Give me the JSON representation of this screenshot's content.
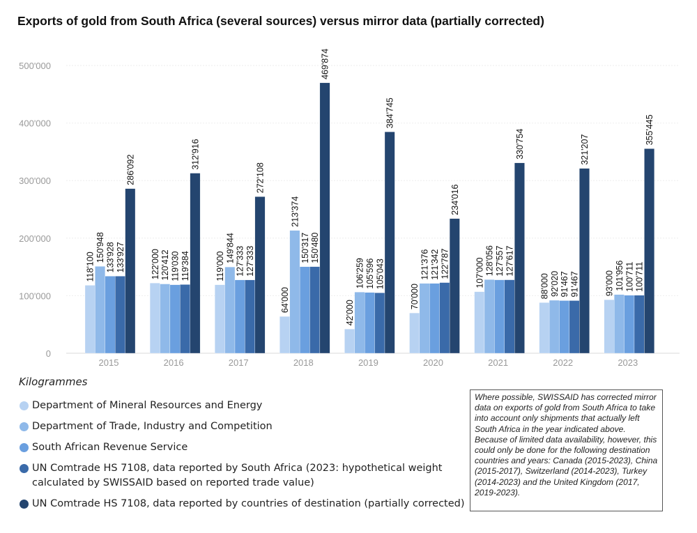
{
  "chart_data": {
    "type": "bar",
    "title": "Exports of gold from South Africa (several sources) versus mirror data (partially corrected)",
    "xlabel": "",
    "ylabel": "Kilogrammes",
    "unit_label": "Kilogrammes",
    "ylim": [
      0,
      500000
    ],
    "yticks": [
      0,
      100000,
      200000,
      300000,
      400000,
      500000
    ],
    "ytick_labels": [
      "0",
      "100'000",
      "200'000",
      "300'000",
      "400'000",
      "500'000"
    ],
    "grid": true,
    "legend_position": "bottom-left",
    "categories": [
      "2015",
      "2016",
      "2017",
      "2018",
      "2019",
      "2020",
      "2021",
      "2022",
      "2023"
    ],
    "series": [
      {
        "name": "Department of Mineral Resources and Energy",
        "color": "#b7d2f2",
        "values": [
          118100,
          122000,
          119000,
          64000,
          42000,
          70000,
          107000,
          88000,
          93000
        ],
        "labels": [
          "118'100",
          "122'000",
          "119'000",
          "64'000",
          "42'000",
          "70'000",
          "107'000",
          "88'000",
          "93'000"
        ]
      },
      {
        "name": "Department of Trade, Industry and Competition",
        "color": "#8fb9e9",
        "values": [
          150948,
          120412,
          149844,
          213374,
          106259,
          121376,
          128056,
          92020,
          101956
        ],
        "labels": [
          "150'948",
          "120'412",
          "149'844",
          "213'374",
          "106'259",
          "121'376",
          "128'056",
          "92'020",
          "101'956"
        ]
      },
      {
        "name": "South African Revenue Service",
        "color": "#6a9fdf",
        "values": [
          133928,
          119030,
          127333,
          150317,
          105596,
          121342,
          127557,
          91467,
          100711
        ],
        "labels": [
          "133'928",
          "119'030",
          "127'333",
          "150'317",
          "105'596",
          "121'342",
          "127'557",
          "91'467",
          "100'711"
        ]
      },
      {
        "name": "UN Comtrade HS 7108, data reported by South Africa (2023: hypothetical weight calculated by SWISSAID based on reported trade value)",
        "color": "#3a6aa9",
        "values": [
          133927,
          119384,
          127333,
          150480,
          105043,
          122787,
          127617,
          91467,
          100711
        ],
        "labels": [
          "133'927",
          "119'384",
          "127'333",
          "150'480",
          "105'043",
          "122'787",
          "127'617",
          "91'467",
          "100'711"
        ]
      },
      {
        "name": "UN Comtrade HS 7108, data reported by countries of destination (partially corrected)",
        "color": "#24456f",
        "values": [
          286092,
          312916,
          272108,
          469874,
          384745,
          234016,
          330754,
          321207,
          355445
        ],
        "labels": [
          "286'092",
          "312'916",
          "272'108",
          "469'874",
          "384'745",
          "234'016",
          "330'754",
          "321'207",
          "355'445"
        ]
      }
    ],
    "note": "Where possible, SWISSAID has corrected mirror data on exports of gold from South Africa to take into account only shipments that actually left South Africa in the year indicated above. Because of limited data availability, however, this could only be done for the following destination countries and years: Canada (2015-2023), China (2015-2017), Switzerland (2014-2023), Turkey (2014-2023) and the United Kingdom (2017, 2019-2023)."
  }
}
